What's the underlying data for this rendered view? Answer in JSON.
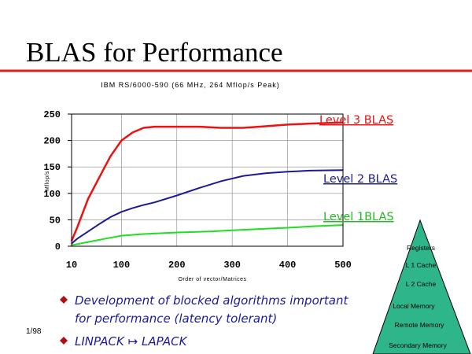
{
  "title": "BLAS for Performance",
  "date": "1/98",
  "colors": {
    "rule": "#d82020",
    "level3": "#ee1111",
    "level2": "#1a1a99",
    "level1": "#22dd22",
    "bullet": "#b01010",
    "bullet_text": "#1a1aa0",
    "pyramid": "#2eb58a"
  },
  "chart_data": {
    "type": "line",
    "title": "IBM RS/6000-590 (66 MHz, 264 Mflop/s Peak)",
    "xlabel": "Order of vector/Matrices",
    "ylabel": "Mflop/s",
    "xlim": [
      10,
      500
    ],
    "ylim": [
      0,
      250
    ],
    "x_ticks": [
      10,
      100,
      200,
      300,
      400,
      500
    ],
    "y_ticks": [
      0,
      50,
      100,
      150,
      200,
      250
    ],
    "grid": true,
    "series": [
      {
        "name": "Level 3 BLAS",
        "color": "#ee1111",
        "x": [
          10,
          20,
          40,
          60,
          80,
          100,
          120,
          140,
          160,
          200,
          240,
          280,
          320,
          360,
          400,
          440,
          500
        ],
        "y": [
          10,
          35,
          90,
          130,
          170,
          200,
          215,
          224,
          226,
          226,
          226,
          224,
          224,
          227,
          230,
          232,
          234
        ]
      },
      {
        "name": "Level 2 BLAS",
        "color": "#1a1a99",
        "x": [
          10,
          20,
          40,
          60,
          80,
          100,
          120,
          140,
          160,
          200,
          240,
          280,
          320,
          360,
          400,
          440,
          500
        ],
        "y": [
          5,
          14,
          28,
          42,
          55,
          65,
          72,
          78,
          83,
          96,
          110,
          123,
          133,
          138,
          141,
          143,
          144
        ]
      },
      {
        "name": "Level 1BLAS",
        "color": "#22dd22",
        "x": [
          10,
          40,
          80,
          100,
          140,
          200,
          260,
          300,
          360,
          400,
          450,
          500
        ],
        "y": [
          2,
          8,
          16,
          20,
          23,
          26,
          28,
          30,
          33,
          35,
          38,
          40
        ]
      }
    ]
  },
  "bullets": [
    {
      "lines": [
        "Development of blocked algorithms important",
        "for performance (latency tolerant)"
      ]
    },
    {
      "lines": [
        "LINPACK ↦ LAPACK"
      ]
    }
  ],
  "pyramid": {
    "levels": [
      "Registers",
      "L 1 Cache",
      "L 2 Cache",
      "Local Memory",
      "Remote Memory",
      "Secondary Memory"
    ]
  }
}
